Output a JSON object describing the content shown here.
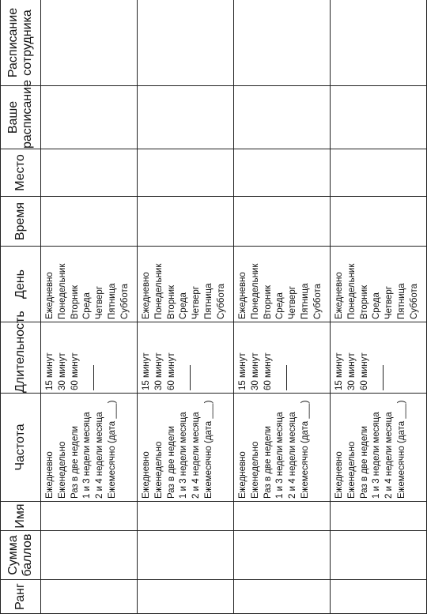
{
  "headers": {
    "rank": "Ранг",
    "score": "Сумма баллов",
    "name": "Имя",
    "frequency": "Частота",
    "duration": "Длительность",
    "day": "День",
    "time": "Время",
    "place": "Место",
    "your_schedule": "Ваше расписание",
    "employee_schedule": "Расписание сотрудника"
  },
  "frequency_options": [
    "Ежедневно",
    "Еженедельно",
    "Раз в две недели",
    "1 и 3 недели месяца",
    "2 и 4 недели месяца",
    "Ежемесячно (дата ___)"
  ],
  "duration_options": [
    "15 минут",
    "30 минут",
    "60 минут",
    ""
  ],
  "day_options": [
    "Ежедневно",
    "Понедельник",
    "Вторник",
    "Среда",
    "Четверг",
    "Пятница",
    "Суббота"
  ],
  "rows": [
    {
      "rank": "",
      "score": "",
      "name": "",
      "time": "",
      "place": "",
      "your_schedule": "",
      "employee_schedule": ""
    },
    {
      "rank": "",
      "score": "",
      "name": "",
      "time": "",
      "place": "",
      "your_schedule": "",
      "employee_schedule": ""
    },
    {
      "rank": "",
      "score": "",
      "name": "",
      "time": "",
      "place": "",
      "your_schedule": "",
      "employee_schedule": ""
    },
    {
      "rank": "",
      "score": "",
      "name": "",
      "time": "",
      "place": "",
      "your_schedule": "",
      "employee_schedule": ""
    }
  ]
}
